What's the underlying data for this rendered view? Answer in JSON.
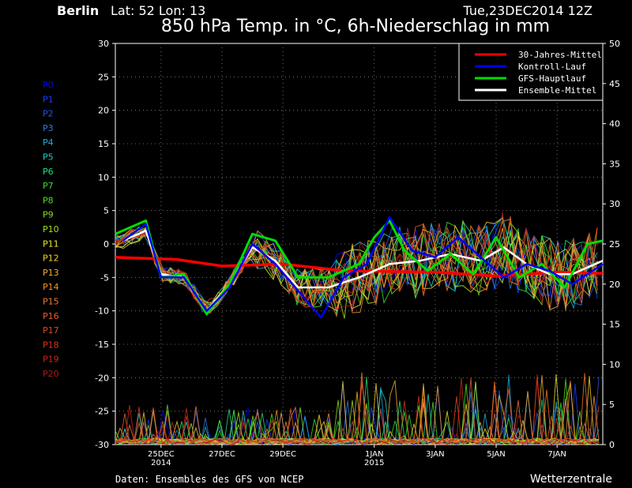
{
  "header": {
    "location": "Berlin",
    "coords": "Lat: 52 Lon: 13",
    "run": "Tue,23DEC2014 12Z",
    "title": "850 hPa Temp. in °C, 6h-Niederschlag in mm"
  },
  "footer": {
    "source": "Daten: Ensembles des GFS von NCEP",
    "brand": "Wetterzentrale"
  },
  "members": {
    "labels": [
      "P0",
      "P1",
      "P2",
      "P3",
      "P4",
      "P5",
      "P6",
      "P7",
      "P8",
      "P9",
      "P10",
      "P11",
      "P12",
      "P13",
      "P14",
      "P15",
      "P16",
      "P17",
      "P18",
      "P19",
      "P20"
    ],
    "colors": [
      "#0000ff",
      "#1a3cff",
      "#2255ee",
      "#2a7ae0",
      "#22aee0",
      "#20d0c0",
      "#20e080",
      "#30e030",
      "#50e020",
      "#80e020",
      "#a0e020",
      "#e8e830",
      "#f0d030",
      "#f0b030",
      "#f09030",
      "#f07830",
      "#e86028",
      "#e04820",
      "#d83818",
      "#c82818",
      "#b01818"
    ]
  },
  "legend": {
    "items": [
      {
        "label": "30-Jahres-Mittel",
        "color": "#ff0000"
      },
      {
        "label": "Kontroll-Lauf",
        "color": "#0000ff"
      },
      {
        "label": "GFS-Hauptlauf",
        "color": "#00dd00"
      },
      {
        "label": "Ensemble-Mittel",
        "color": "#ffffff"
      }
    ]
  },
  "chart_data": {
    "type": "line",
    "y_left": {
      "min": -30,
      "max": 30,
      "ticks": [
        -30,
        -25,
        -20,
        -15,
        -10,
        -5,
        0,
        5,
        10,
        15,
        20,
        25,
        30
      ]
    },
    "y_right": {
      "min": 0,
      "max": 50,
      "ticks": [
        0,
        5,
        10,
        15,
        20,
        25,
        30,
        35,
        40,
        45,
        50
      ]
    },
    "x": {
      "start": "2014-12-23 12:00",
      "end": "2015-01-08 12:00"
    },
    "x_ticks": [
      {
        "label": "25DEC",
        "sub": "2014",
        "date": "2014-12-25"
      },
      {
        "label": "27DEC",
        "sub": "",
        "date": "2014-12-27"
      },
      {
        "label": "29DEC",
        "sub": "",
        "date": "2014-12-29"
      },
      {
        "label": "1JAN",
        "sub": "2015",
        "date": "2015-01-01"
      },
      {
        "label": "3JAN",
        "sub": "",
        "date": "2015-01-03"
      },
      {
        "label": "5JAN",
        "sub": "",
        "date": "2015-01-05"
      },
      {
        "label": "7JAN",
        "sub": "",
        "date": "2015-01-07"
      }
    ],
    "grid": true,
    "legend_position": "top-right",
    "series": [
      {
        "name": "30-Jahres-Mittel",
        "color": "#ff0000",
        "width": 3.5,
        "x": [
          "2014-12-23 12:00",
          "2014-12-25 12:00",
          "2014-12-27 00:00",
          "2014-12-29 00:00",
          "2014-12-31 00:00",
          "2015-01-03 00:00",
          "2015-01-05 00:00",
          "2015-01-07 00:00",
          "2015-01-08 12:00"
        ],
        "y": [
          -2,
          -2.3,
          -3.3,
          -3,
          -4,
          -4.2,
          -4.8,
          -4.2,
          -4.4
        ]
      },
      {
        "name": "Ensemble-Mittel",
        "color": "#ffffff",
        "width": 2.5,
        "x": [
          "2014-12-23 18:00",
          "2014-12-24 12:00",
          "2014-12-25 00:00",
          "2014-12-25 18:00",
          "2014-12-26 12:00",
          "2014-12-27 06:00",
          "2014-12-28 00:00",
          "2014-12-28 18:00",
          "2014-12-29 12:00",
          "2014-12-30 12:00",
          "2014-12-31 12:00",
          "2015-01-01 12:00",
          "2015-01-02 12:00",
          "2015-01-03 12:00",
          "2015-01-04 12:00",
          "2015-01-05 06:00",
          "2015-01-06 00:00",
          "2015-01-06 18:00",
          "2015-01-07 12:00",
          "2015-01-08 12:00"
        ],
        "y": [
          0.5,
          2,
          -4.5,
          -5,
          -10,
          -6,
          -0.5,
          -2.5,
          -6.5,
          -6.5,
          -5,
          -3,
          -2.5,
          -1.5,
          -2.5,
          -0.5,
          -3,
          -4.5,
          -4.5,
          -2.5
        ]
      },
      {
        "name": "GFS-Hauptlauf",
        "color": "#00dd00",
        "width": 3,
        "x": [
          "2014-12-23 12:00",
          "2014-12-24 12:00",
          "2014-12-25 00:00",
          "2014-12-25 18:00",
          "2014-12-26 12:00",
          "2014-12-27 06:00",
          "2014-12-28 00:00",
          "2014-12-28 18:00",
          "2014-12-29 12:00",
          "2014-12-30 12:00",
          "2014-12-31 12:00",
          "2015-01-01 00:00",
          "2015-01-01 12:00",
          "2015-01-02 00:00",
          "2015-01-02 18:00",
          "2015-01-03 12:00",
          "2015-01-04 06:00",
          "2015-01-05 00:00",
          "2015-01-05 18:00",
          "2015-01-06 12:00",
          "2015-01-07 06:00",
          "2015-01-08 00:00",
          "2015-01-08 12:00"
        ],
        "y": [
          1.5,
          3.5,
          -5,
          -4.5,
          -10.5,
          -6,
          1.5,
          0.5,
          -5,
          -5,
          -3,
          1,
          3.5,
          -1,
          -4,
          -1.5,
          -4.5,
          1,
          -5,
          -3,
          -6.5,
          0,
          0.5
        ]
      },
      {
        "name": "Kontroll-Lauf",
        "color": "#0000ff",
        "width": 2.5,
        "x": [
          "2014-12-23 18:00",
          "2014-12-24 12:00",
          "2014-12-25 00:00",
          "2014-12-25 18:00",
          "2014-12-26 12:00",
          "2014-12-27 06:00",
          "2014-12-28 00:00",
          "2014-12-28 18:00",
          "2014-12-29 12:00",
          "2014-12-30 06:00",
          "2014-12-31 00:00",
          "2014-12-31 18:00",
          "2015-01-01 12:00",
          "2015-01-02 06:00",
          "2015-01-03 00:00",
          "2015-01-03 18:00",
          "2015-01-04 12:00",
          "2015-01-05 06:00",
          "2015-01-06 00:00",
          "2015-01-06 18:00",
          "2015-01-07 12:00",
          "2015-01-08 12:00"
        ],
        "y": [
          0.5,
          3,
          -5,
          -5,
          -10,
          -6.5,
          0,
          -3,
          -7,
          -11,
          -5,
          -3,
          4,
          -1,
          -2,
          1,
          -2,
          -5,
          -3,
          -4,
          -6,
          -3
        ]
      }
    ]
  }
}
